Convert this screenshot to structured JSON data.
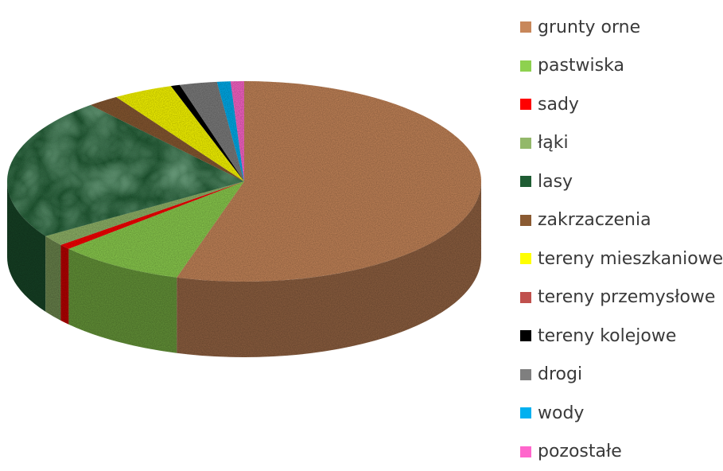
{
  "chart_data": {
    "type": "pie",
    "style": "3d",
    "legend_position": "right",
    "series": [
      {
        "label": "grunty orne",
        "value": 53.5,
        "color": "#c8875a"
      },
      {
        "label": "pastwiska",
        "value": 8.5,
        "color": "#8ed14f"
      },
      {
        "label": "sady",
        "value": 0.8,
        "color": "#ff0000"
      },
      {
        "label": "łąki",
        "value": 1.7,
        "color": "#93b86a"
      },
      {
        "label": "lasy",
        "value": 22.5,
        "color": "#1f5c33"
      },
      {
        "label": "zakrzaczenia",
        "value": 2.1,
        "color": "#8a5a32"
      },
      {
        "label": "tereny mieszkaniowe",
        "value": 4.0,
        "color": "#ffff00"
      },
      {
        "label": "tereny przemysłowe",
        "value": 0.0,
        "color": "#c0504d"
      },
      {
        "label": "tereny kolejowe",
        "value": 0.6,
        "color": "#000000"
      },
      {
        "label": "drogi",
        "value": 2.5,
        "color": "#7f7f7f"
      },
      {
        "label": "wody",
        "value": 0.9,
        "color": "#00b0f0"
      },
      {
        "label": "pozostałe",
        "value": 0.9,
        "color": "#ff66cc"
      }
    ]
  }
}
